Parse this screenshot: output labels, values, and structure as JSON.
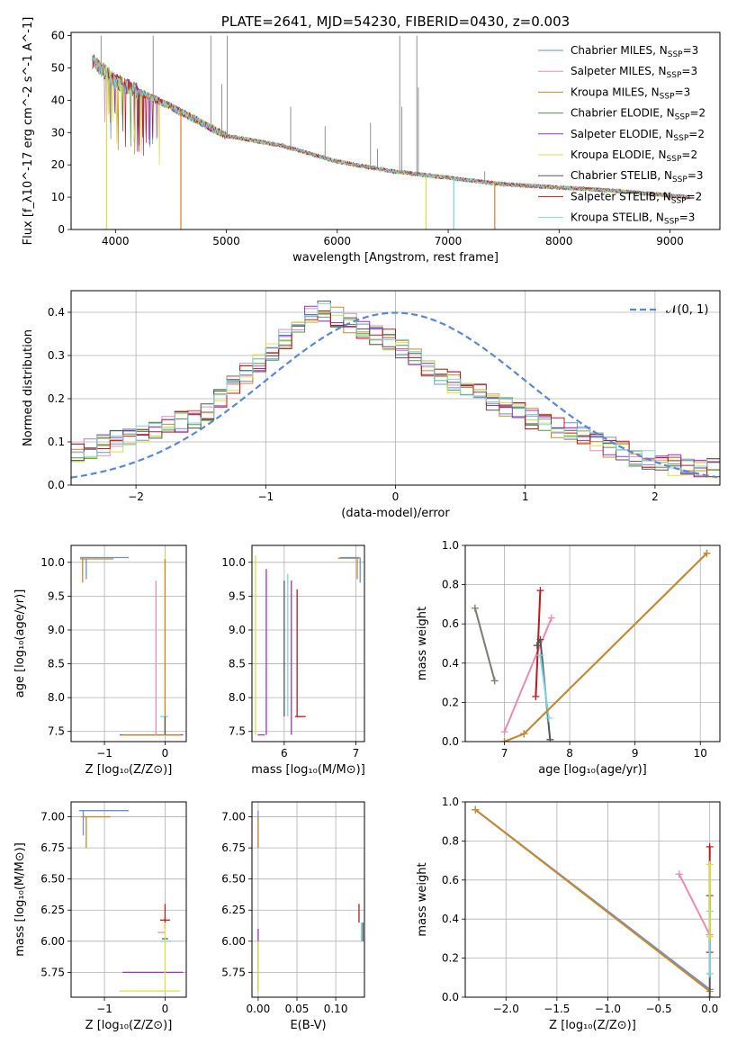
{
  "chart_data": [
    {
      "type": "line",
      "title": "PLATE=2641, MJD=54230, FIBERID=0430, z=0.003",
      "xlabel": "wavelength [Angstrom, rest frame]",
      "ylabel": "Flux [f_λ10^-17 erg cm^-2 s^-1 A^-1]",
      "xlim": [
        3600,
        9450
      ],
      "ylim": [
        0,
        61
      ],
      "xticks": [
        "4000",
        "5000",
        "6000",
        "7000",
        "8000",
        "9000"
      ],
      "yticks": [
        "0",
        "10",
        "20",
        "30",
        "40",
        "50",
        "60"
      ],
      "grid": false,
      "legend_position": "top-right",
      "legend": [
        "Chabrier MILES, N_SSP=3",
        "Salpeter MILES, N_SSP=3",
        "Kroupa MILES, N_SSP=3",
        "Chabrier ELODIE, N_SSP=2",
        "Salpeter ELODIE, N_SSP=2",
        "Kroupa ELODIE, N_SSP=2",
        "Chabrier STELIB, N_SSP=3",
        "Salpeter STELIB, N_SSP=2",
        "Kroupa STELIB, N_SSP=3"
      ],
      "colors": [
        "#6b8fd6",
        "#e88bb6",
        "#c8892a",
        "#4c9a4c",
        "#9b34b8",
        "#d9e040",
        "#555555",
        "#c0181e",
        "#7dd5dd"
      ],
      "continuum": {
        "x": [
          3800,
          4000,
          4500,
          5000,
          5500,
          6000,
          6500,
          7000,
          7500,
          8000,
          8500,
          9000,
          9180
        ],
        "y": [
          52,
          46,
          38,
          29,
          26,
          21,
          18,
          16,
          14,
          13,
          12,
          10.5,
          10
        ]
      },
      "continuum_note": "",
      "emission_lines": [
        {
          "x": 3870,
          "y": 60
        },
        {
          "x": 4340,
          "y": 60
        },
        {
          "x": 4860,
          "y": 60
        },
        {
          "x": 4960,
          "y": 45
        },
        {
          "x": 5007,
          "y": 60
        },
        {
          "x": 5580,
          "y": 38
        },
        {
          "x": 5890,
          "y": 32
        },
        {
          "x": 6300,
          "y": 33
        },
        {
          "x": 6363,
          "y": 25
        },
        {
          "x": 6563,
          "y": 60
        },
        {
          "x": 6583,
          "y": 38
        },
        {
          "x": 6717,
          "y": 60
        },
        {
          "x": 6731,
          "y": 44
        },
        {
          "x": 7330,
          "y": 18
        }
      ],
      "drop_outs": [
        {
          "x": 3920,
          "color": "#d9e040"
        },
        {
          "x": 4590,
          "color": "#e07b2a"
        },
        {
          "x": 6800,
          "color": "#d9e040"
        },
        {
          "x": 7050,
          "color": "#7dd5dd"
        },
        {
          "x": 7420,
          "color": "#e07b2a"
        }
      ]
    },
    {
      "type": "line",
      "xlabel": "(data-model)/error",
      "ylabel": "Normed distribution",
      "xlim": [
        -2.5,
        2.5
      ],
      "ylim": [
        0,
        0.45
      ],
      "xticks": [
        "−2",
        "−1",
        "0",
        "1",
        "2"
      ],
      "yticks": [
        "0.0",
        "0.1",
        "0.2",
        "0.3",
        "0.4"
      ],
      "grid": true,
      "legend_position": "top-right",
      "legend": [
        "𝒩(0, 1)"
      ],
      "gaussian": {
        "mean": 0,
        "std": 1,
        "color": "#5b86d6"
      },
      "bin_width": 0.1,
      "histogram_template": [
        0.06,
        0.07,
        0.08,
        0.1,
        0.08,
        0.11,
        0.1,
        0.12,
        0.09,
        0.13,
        0.15,
        0.14,
        0.17,
        0.15,
        0.2,
        0.19,
        0.22,
        0.26,
        0.24,
        0.28,
        0.3,
        0.27,
        0.31,
        0.29,
        0.33,
        0.32,
        0.36,
        0.34,
        0.4,
        0.38,
        0.42,
        0.39,
        0.37,
        0.33,
        0.3,
        0.32,
        0.28,
        0.3,
        0.27,
        0.25,
        0.27,
        0.24,
        0.22,
        0.23,
        0.21,
        0.19,
        0.2,
        0.18,
        0.16,
        0.17,
        0.15,
        0.13,
        0.11,
        0.12,
        0.1,
        0.09,
        0.1,
        0.08,
        0.07,
        0.06,
        0.08,
        0.06,
        0.05,
        0.06,
        0.04,
        0.05,
        0.04,
        0.06,
        0.05,
        0.04,
        0.03,
        0.04,
        0.03,
        0.05,
        0.04,
        0.03,
        0.04,
        0.06,
        0.04,
        0.05,
        0.03,
        0.04,
        0.05,
        0.03,
        0.04,
        0.05,
        0.04,
        0.06,
        0.04,
        0.04
      ]
    },
    {
      "type": "scatter",
      "xlabel": "Z [log₁₀(Z/Z⊙)]",
      "ylabel": "age  [log₁₀(age/yr)]",
      "xlim": [
        -1.55,
        0.35
      ],
      "ylim": [
        7.35,
        10.25
      ],
      "xticks": [
        "−1",
        "0"
      ],
      "yticks": [
        "7.5",
        "8.0",
        "8.5",
        "9.0",
        "9.5",
        "10.0"
      ],
      "grid": true,
      "segments": [
        {
          "x": [
            -1.4,
            -0.6
          ],
          "y": [
            10.07,
            10.07
          ],
          "color": "#6b8fd6"
        },
        {
          "x": [
            -1.4,
            -0.85
          ],
          "y": [
            10.05,
            10.05
          ],
          "color": "#c8892a"
        },
        {
          "x": [
            -1.36,
            -1.36
          ],
          "y": [
            10.07,
            9.7
          ],
          "color": "#c8892a"
        },
        {
          "x": [
            -1.3,
            -1.3
          ],
          "y": [
            10.05,
            9.75
          ],
          "color": "#6b8fd6"
        },
        {
          "x": [
            -0.75,
            0.3
          ],
          "y": [
            7.45,
            7.45
          ],
          "color": "#9b34b8"
        },
        {
          "x": [
            -0.7,
            0.25
          ],
          "y": [
            7.44,
            7.44
          ],
          "color": "#d9e040"
        },
        {
          "x": [
            -0.15,
            -0.15
          ],
          "y": [
            9.73,
            7.45
          ],
          "color": "#e88bb6"
        },
        {
          "x": [
            0.0,
            0.0
          ],
          "y": [
            10.1,
            7.45
          ],
          "color": "#d9e040"
        },
        {
          "x": [
            0.0,
            0.0
          ],
          "y": [
            10.05,
            7.45
          ],
          "color": "#c8892a"
        },
        {
          "x": [
            -0.08,
            0.05
          ],
          "y": [
            7.72,
            7.72
          ],
          "color": "#7dd5dd"
        },
        {
          "x": [
            0.0,
            0.0
          ],
          "y": [
            7.72,
            7.45
          ],
          "color": "#555555"
        }
      ]
    },
    {
      "type": "scatter",
      "xlabel": "mass [log₁₀(M/M⊙)]",
      "xlim": [
        5.55,
        7.12
      ],
      "ylim": [
        7.35,
        10.25
      ],
      "xticks": [
        "6",
        "7"
      ],
      "yticks": [
        "7.5",
        "8.0",
        "8.5",
        "9.0",
        "9.5",
        "10.0"
      ],
      "grid": true,
      "segments": [
        {
          "x": [
            5.6,
            5.6
          ],
          "y": [
            10.1,
            7.45
          ],
          "color": "#d9e040"
        },
        {
          "x": [
            5.75,
            5.75
          ],
          "y": [
            9.9,
            7.45
          ],
          "color": "#9b34b8"
        },
        {
          "x": [
            5.63,
            5.73
          ],
          "y": [
            7.45,
            7.45
          ],
          "color": "#9b34b8"
        },
        {
          "x": [
            6.0,
            6.0
          ],
          "y": [
            9.73,
            7.72
          ],
          "color": "#555555"
        },
        {
          "x": [
            6.05,
            6.05
          ],
          "y": [
            9.83,
            7.72
          ],
          "color": "#7dd5dd"
        },
        {
          "x": [
            6.1,
            6.1
          ],
          "y": [
            9.73,
            7.45
          ],
          "color": "#9b34b8"
        },
        {
          "x": [
            6.18,
            6.18
          ],
          "y": [
            9.6,
            7.72
          ],
          "color": "#c0181e"
        },
        {
          "x": [
            6.15,
            6.3
          ],
          "y": [
            7.72,
            7.72
          ],
          "color": "#c0181e"
        },
        {
          "x": [
            6.75,
            7.05
          ],
          "y": [
            10.06,
            10.06
          ],
          "color": "#c8892a"
        },
        {
          "x": [
            6.78,
            7.05
          ],
          "y": [
            10.07,
            10.07
          ],
          "color": "#6b8fd6"
        },
        {
          "x": [
            7.02,
            7.02
          ],
          "y": [
            10.05,
            9.75
          ],
          "color": "#c8892a"
        },
        {
          "x": [
            7.06,
            7.06
          ],
          "y": [
            10.07,
            9.7
          ],
          "color": "#6b8fd6"
        }
      ]
    },
    {
      "type": "line",
      "xlabel": "age  [log₁₀(age/yr)]",
      "ylabel": "mass weight",
      "xlim": [
        6.4,
        10.3
      ],
      "ylim": [
        0,
        1
      ],
      "xticks": [
        "6",
        "7",
        "8",
        "9",
        "10"
      ],
      "yticks": [
        "0.0",
        "0.2",
        "0.4",
        "0.6",
        "0.8",
        "1.0"
      ],
      "grid": true,
      "series": [
        {
          "x": [
            6.55,
            6.85
          ],
          "y": [
            0.68,
            0.31
          ],
          "color": "#d9e040"
        },
        {
          "x": [
            6.55,
            6.85
          ],
          "y": [
            0.68,
            0.31
          ],
          "color": "#7d7d7d"
        },
        {
          "x": [
            7.0,
            7.72
          ],
          "y": [
            0.05,
            0.63
          ],
          "color": "#e88bb6"
        },
        {
          "x": [
            7.48,
            7.55
          ],
          "y": [
            0.23,
            0.77
          ],
          "color": "#c0181e"
        },
        {
          "x": [
            7.5,
            7.55,
            7.7
          ],
          "y": [
            0.49,
            0.52,
            0.01
          ],
          "color": "#555555"
        },
        {
          "x": [
            7.55,
            7.68
          ],
          "y": [
            0.44,
            0.12
          ],
          "color": "#7dd5dd"
        },
        {
          "x": [
            7.0,
            7.3,
            10.1
          ],
          "y": [
            0.0,
            0.04,
            0.96
          ],
          "color": "#6b8fd6"
        },
        {
          "x": [
            7.0,
            7.3,
            10.1
          ],
          "y": [
            0.0,
            0.04,
            0.96
          ],
          "color": "#c8892a"
        }
      ]
    },
    {
      "type": "scatter",
      "xlabel": "Z [log₁₀(Z/Z⊙)]",
      "ylabel": "mass [log₁₀(M/M⊙)]",
      "xlim": [
        -1.55,
        0.35
      ],
      "ylim": [
        5.55,
        7.12
      ],
      "xticks": [
        "−1",
        "0"
      ],
      "yticks": [
        "5.75",
        "6.00",
        "6.25",
        "6.50",
        "6.75",
        "7.00",
        "7.25"
      ],
      "grid": true,
      "segments": [
        {
          "x": [
            -1.42,
            -0.6
          ],
          "y": [
            7.05,
            7.05
          ],
          "color": "#6b8fd6"
        },
        {
          "x": [
            -1.38,
            -0.9
          ],
          "y": [
            7.0,
            7.0
          ],
          "color": "#c8892a"
        },
        {
          "x": [
            -1.35,
            -1.35
          ],
          "y": [
            7.05,
            6.85
          ],
          "color": "#6b8fd6"
        },
        {
          "x": [
            -1.3,
            -1.3
          ],
          "y": [
            7.0,
            6.75
          ],
          "color": "#c8892a"
        },
        {
          "x": [
            -0.7,
            0.3
          ],
          "y": [
            5.75,
            5.75
          ],
          "color": "#9b34b8"
        },
        {
          "x": [
            -0.75,
            0.25
          ],
          "y": [
            5.6,
            5.6
          ],
          "color": "#d9e040"
        },
        {
          "x": [
            -0.12,
            0.0
          ],
          "y": [
            6.07,
            6.07
          ],
          "color": "#e88bb6"
        },
        {
          "x": [
            0.0,
            0.0
          ],
          "y": [
            6.3,
            6.1
          ],
          "color": "#c0181e"
        },
        {
          "x": [
            -0.08,
            0.08
          ],
          "y": [
            6.17,
            6.17
          ],
          "color": "#c0181e"
        },
        {
          "x": [
            -0.08,
            0.1
          ],
          "y": [
            6.0,
            6.0
          ],
          "color": "#7dd5dd"
        },
        {
          "x": [
            -0.05,
            0.05
          ],
          "y": [
            6.02,
            6.02
          ],
          "color": "#555555"
        },
        {
          "x": [
            0.0,
            0.0
          ],
          "y": [
            6.15,
            5.6
          ],
          "color": "#d9e040"
        }
      ]
    },
    {
      "type": "scatter",
      "xlabel": "E(B-V)",
      "xlim": [
        -0.008,
        0.137
      ],
      "ylim": [
        5.55,
        7.12
      ],
      "xticks": [
        "0.00",
        "0.05",
        "0.10"
      ],
      "yticks": [
        "5.75",
        "6.00",
        "6.25",
        "6.50",
        "6.75",
        "7.00",
        "7.25"
      ],
      "grid": true,
      "segments": [
        {
          "x": [
            0.0,
            0.0
          ],
          "y": [
            7.05,
            6.75
          ],
          "color": "#6b8fd6"
        },
        {
          "x": [
            0.0,
            0.0
          ],
          "y": [
            7.0,
            6.75
          ],
          "color": "#c8892a"
        },
        {
          "x": [
            0.0,
            0.0
          ],
          "y": [
            6.1,
            5.6
          ],
          "color": "#9b34b8"
        },
        {
          "x": [
            0.0,
            0.0
          ],
          "y": [
            6.0,
            5.6
          ],
          "color": "#d9e040"
        },
        {
          "x": [
            0.13,
            0.13
          ],
          "y": [
            6.3,
            6.15
          ],
          "color": "#c0181e"
        },
        {
          "x": [
            0.133,
            0.133
          ],
          "y": [
            6.15,
            6.0
          ],
          "color": "#7dd5dd"
        },
        {
          "x": [
            0.135,
            0.135
          ],
          "y": [
            6.15,
            6.0
          ],
          "color": "#555555"
        }
      ]
    },
    {
      "type": "line",
      "xlabel": "Z [log₁₀(Z/Z⊙)]",
      "ylabel": "mass weight",
      "xlim": [
        -2.4,
        0.1
      ],
      "ylim": [
        0,
        1
      ],
      "xticks": [
        "−2.0",
        "−1.5",
        "−1.0",
        "−0.5",
        "0.0"
      ],
      "yticks": [
        "0.0",
        "0.2",
        "0.4",
        "0.6",
        "0.8",
        "1.0"
      ],
      "grid": true,
      "series": [
        {
          "x": [
            -2.3,
            0.0
          ],
          "y": [
            0.96,
            0.04
          ],
          "color": "#6b8fd6"
        },
        {
          "x": [
            -2.3,
            0.0
          ],
          "y": [
            0.96,
            0.03
          ],
          "color": "#c8892a"
        },
        {
          "x": [
            -0.3,
            0.0
          ],
          "y": [
            0.63,
            0.32
          ],
          "color": "#e88bb6"
        },
        {
          "x": [
            0.0,
            0.0
          ],
          "y": [
            0.77,
            0.23
          ],
          "color": "#c0181e"
        },
        {
          "x": [
            0.0,
            0.0
          ],
          "y": [
            0.52,
            0.0
          ],
          "color": "#555555"
        },
        {
          "x": [
            0.0,
            0.0
          ],
          "y": [
            0.44,
            0.12
          ],
          "color": "#7dd5dd"
        },
        {
          "x": [
            0.0,
            0.0
          ],
          "y": [
            0.68,
            0.31
          ],
          "color": "#d9e040"
        }
      ]
    }
  ]
}
